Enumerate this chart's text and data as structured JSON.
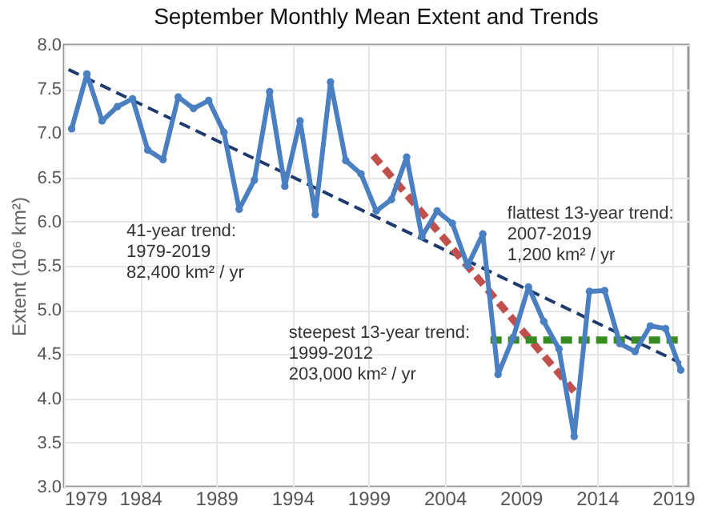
{
  "chart_data": {
    "type": "line",
    "title": "September Monthly Mean Extent and Trends",
    "ylabel": "Extent (10⁶ km²)",
    "xlim": [
      1979,
      2020
    ],
    "xticks": [
      {
        "value": 1979,
        "label": "1979"
      },
      {
        "value": 1984,
        "label": "1984"
      },
      {
        "value": 1989,
        "label": "1989"
      },
      {
        "value": 1994,
        "label": "1994"
      },
      {
        "value": 1999,
        "label": "1999"
      },
      {
        "value": 2004,
        "label": "2004"
      },
      {
        "value": 2009,
        "label": "2009"
      },
      {
        "value": 2014,
        "label": "2014"
      },
      {
        "value": 2019,
        "label": "2019"
      }
    ],
    "ylim": [
      3.0,
      8.0
    ],
    "yticks": [
      {
        "value": 3,
        "label": "3.0"
      },
      {
        "value": 3.5,
        "label": "3.5"
      },
      {
        "value": 4,
        "label": "4.0"
      },
      {
        "value": 4.5,
        "label": "4.5"
      },
      {
        "value": 5,
        "label": "5.0"
      },
      {
        "value": 5.5,
        "label": "5.5"
      },
      {
        "value": 6,
        "label": "6.0"
      },
      {
        "value": 6.5,
        "label": "6.5"
      },
      {
        "value": 7,
        "label": "7.0"
      },
      {
        "value": 7.5,
        "label": "7.5"
      },
      {
        "value": 8,
        "label": "8.0"
      }
    ],
    "grid": true,
    "series": [
      {
        "color": "#4a7fc1",
        "marker": "circle",
        "line_style": "solid",
        "x": [
          1979.5,
          1980.5,
          1981.5,
          1982.5,
          1983.5,
          1984.5,
          1985.5,
          1986.5,
          1987.5,
          1988.5,
          1989.5,
          1990.5,
          1991.5,
          1992.5,
          1993.5,
          1994.5,
          1995.5,
          1996.5,
          1997.5,
          1998.5,
          1999.5,
          2000.5,
          2001.5,
          2002.5,
          2003.5,
          2004.5,
          2005.5,
          2006.5,
          2007.5,
          2008.5,
          2009.5,
          2010.5,
          2011.5,
          2012.5,
          2013.5,
          2014.5,
          2015.5,
          2016.5,
          2017.5,
          2018.5,
          2019.5
        ],
        "values": [
          7.05,
          7.67,
          7.14,
          7.3,
          7.39,
          6.81,
          6.7,
          7.41,
          7.28,
          7.37,
          7.01,
          6.14,
          6.47,
          7.47,
          6.4,
          7.14,
          6.08,
          7.58,
          6.69,
          6.54,
          6.12,
          6.25,
          6.73,
          5.83,
          6.12,
          5.98,
          5.5,
          5.86,
          4.27,
          4.69,
          5.26,
          4.87,
          4.56,
          3.57,
          5.21,
          5.22,
          4.62,
          4.53,
          4.82,
          4.79,
          4.32
        ]
      },
      {
        "type": "line",
        "color": "#1f3a6e",
        "marker": "none",
        "line_style": "dashed",
        "x": [
          1979.3,
          2019.5
        ],
        "values": [
          7.72,
          4.4
        ]
      },
      {
        "type": "line",
        "color": "#c0504d",
        "marker": "none",
        "line_style": "dashed",
        "x": [
          1999.3,
          2012.5
        ],
        "values": [
          6.75,
          4.08
        ]
      },
      {
        "type": "line",
        "color": "#3a8a22",
        "marker": "none",
        "line_style": "dashed",
        "x": [
          2007.0,
          2019.5
        ],
        "values": [
          4.66,
          4.66
        ]
      }
    ],
    "annotations": [
      "41-year trend:\n1979-2019\n82,400 km² / yr",
      "steepest 13-year trend:\n1999-2012\n203,000 km² / yr",
      "flattest 13-year trend:\n2007-2019\n1,200 km² / yr"
    ]
  }
}
